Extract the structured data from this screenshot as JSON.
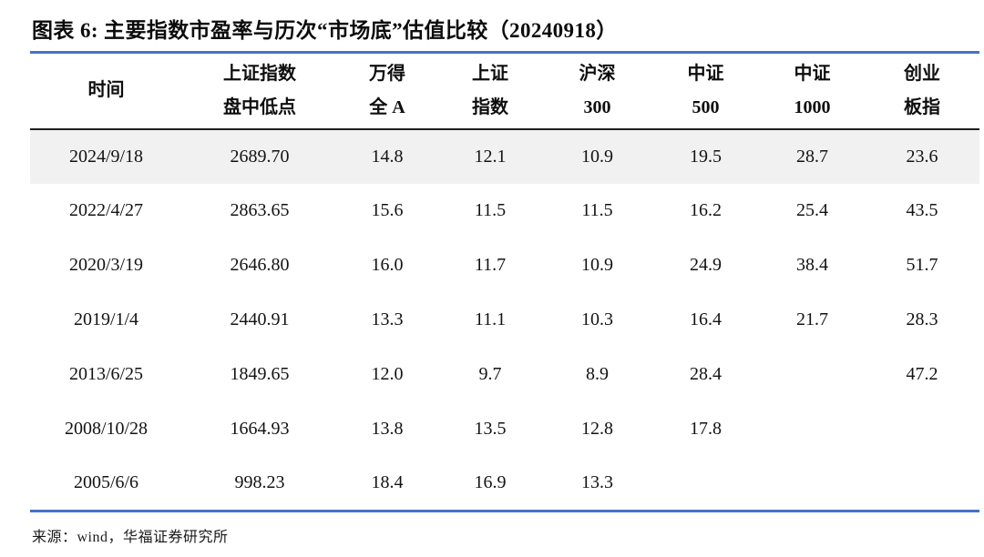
{
  "figure": {
    "title": "图表 6:  主要指数市盈率与历次“市场底”估值比较（20240918）",
    "source": "来源：wind，华福证券研究所"
  },
  "chart_data": {
    "type": "table",
    "title": "主要指数市盈率与历次“市场底”估值比较（20240918）",
    "columns": [
      {
        "line1": "时间",
        "line2": ""
      },
      {
        "line1": "上证指数",
        "line2": "盘中低点"
      },
      {
        "line1": "万得",
        "line2": "全 A"
      },
      {
        "line1": "上证",
        "line2": "指数"
      },
      {
        "line1": "沪深",
        "line2": "300"
      },
      {
        "line1": "中证",
        "line2": "500"
      },
      {
        "line1": "中证",
        "line2": "1000"
      },
      {
        "line1": "创业",
        "line2": "板指"
      }
    ],
    "rows": [
      [
        "2024/9/18",
        "2689.70",
        "14.8",
        "12.1",
        "10.9",
        "19.5",
        "28.7",
        "23.6"
      ],
      [
        "2022/4/27",
        "2863.65",
        "15.6",
        "11.5",
        "11.5",
        "16.2",
        "25.4",
        "43.5"
      ],
      [
        "2020/3/19",
        "2646.80",
        "16.0",
        "11.7",
        "10.9",
        "24.9",
        "38.4",
        "51.7"
      ],
      [
        "2019/1/4",
        "2440.91",
        "13.3",
        "11.1",
        "10.3",
        "16.4",
        "21.7",
        "28.3"
      ],
      [
        "2013/6/25",
        "1849.65",
        "12.0",
        "9.7",
        "8.9",
        "28.4",
        "",
        "47.2"
      ],
      [
        "2008/10/28",
        "1664.93",
        "13.8",
        "13.5",
        "12.8",
        "17.8",
        "",
        ""
      ],
      [
        "2005/6/6",
        "998.23",
        "18.4",
        "16.9",
        "13.3",
        "",
        "",
        ""
      ]
    ],
    "layout_hints": {
      "zebra_first_row": true,
      "top_rule": "blue",
      "header_bottom_rule": "black",
      "bottom_rule": "blue"
    }
  },
  "colors": {
    "rule_blue": "#4472c4",
    "header_border": "#1f1f1f",
    "zebra_row": "#f1f1f1",
    "text": "#131313"
  }
}
